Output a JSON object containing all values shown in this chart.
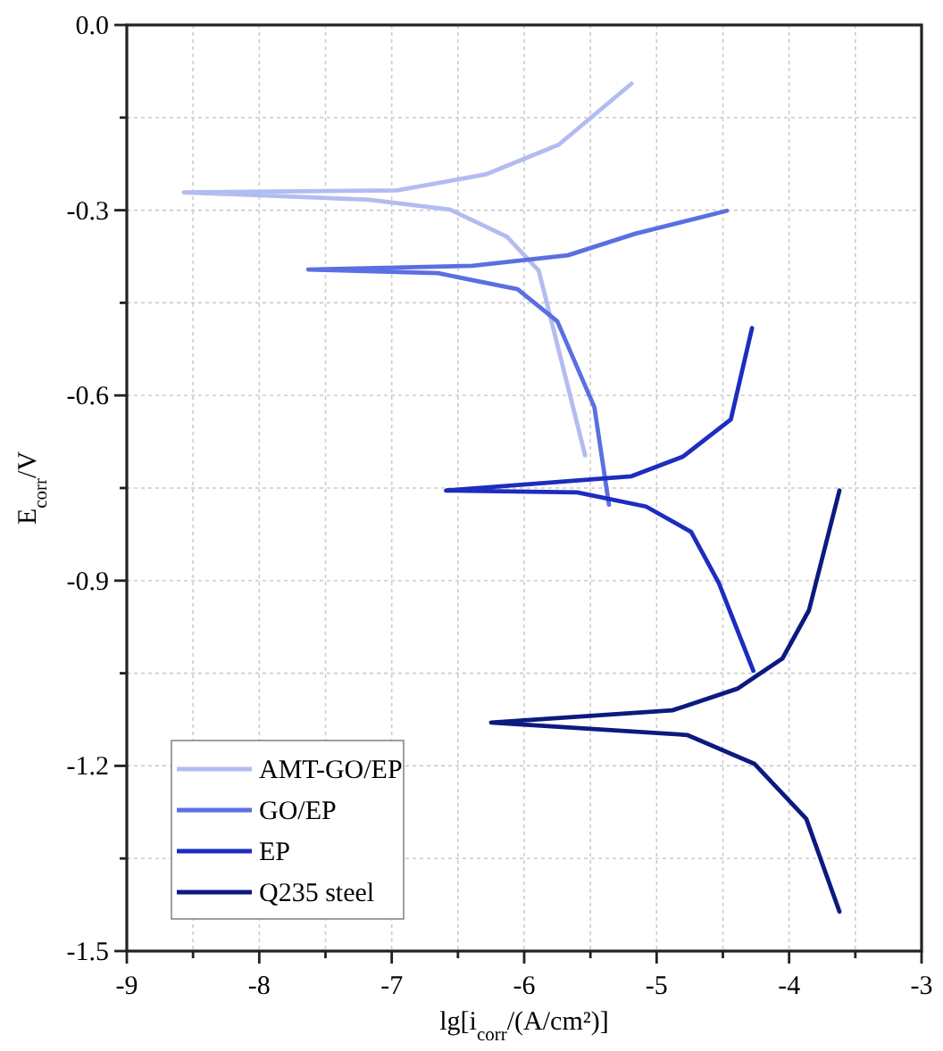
{
  "chart_data": {
    "type": "line",
    "xlabel": "lg[i$_{corr}$/(A/cm²)]",
    "ylabel": "E$_{corr}$/V",
    "xlim": [
      -9,
      -3
    ],
    "ylim": [
      -1.5,
      0
    ],
    "xticks": [
      -9,
      {
        "value": -8.5,
        "label": null
      },
      -8,
      {
        "value": -7.5,
        "label": null
      },
      -7,
      {
        "value": -6.5,
        "label": null
      },
      -6,
      {
        "value": -5.5,
        "label": null
      },
      -5,
      {
        "value": -4.5,
        "label": null
      },
      -4,
      {
        "value": -3.5,
        "label": null
      },
      -3
    ],
    "yticks": [
      {
        "value": 0,
        "label": "0.0"
      },
      {
        "value": -0.15,
        "label": null
      },
      -0.3,
      {
        "value": -0.45,
        "label": null
      },
      -0.6,
      {
        "value": -0.75,
        "label": null
      },
      -0.9,
      {
        "value": -1.05,
        "label": null
      },
      -1.2,
      {
        "value": -1.35,
        "label": null
      },
      -1.5
    ],
    "grid": true,
    "legend": "bottom left",
    "line_style": "solid",
    "marker": "none",
    "series": [
      {
        "name": "AMT-GO/EP",
        "color": "#b3bcf0",
        "x": [
          -5.19,
          -5.74,
          -6.29,
          -6.96,
          -8.57,
          -7.17,
          -6.56,
          -6.13,
          -5.89,
          -5.54
        ],
        "values": [
          -0.095,
          -0.194,
          -0.242,
          -0.268,
          -0.271,
          -0.283,
          -0.299,
          -0.343,
          -0.398,
          -0.697
        ]
      },
      {
        "name": "GO/EP",
        "color": "#5b6fe2",
        "x": [
          -4.47,
          -5.16,
          -5.67,
          -6.39,
          -7.63,
          -6.65,
          -6.05,
          -5.75,
          -5.47,
          -5.36
        ],
        "values": [
          -0.301,
          -0.338,
          -0.373,
          -0.39,
          -0.396,
          -0.402,
          -0.428,
          -0.48,
          -0.619,
          -0.777
        ]
      },
      {
        "name": "EP",
        "color": "#1c2dbf",
        "x": [
          -4.28,
          -4.44,
          -4.8,
          -5.19,
          -6.59,
          -5.6,
          -5.08,
          -4.74,
          -4.53,
          -4.27
        ],
        "values": [
          -0.491,
          -0.639,
          -0.699,
          -0.731,
          -0.754,
          -0.757,
          -0.78,
          -0.821,
          -0.904,
          -1.046
        ]
      },
      {
        "name": "Q235 steel",
        "color": "#0c1a80",
        "x": [
          -3.62,
          -3.85,
          -4.05,
          -4.39,
          -4.88,
          -6.25,
          -4.77,
          -4.26,
          -3.87,
          -3.62
        ],
        "values": [
          -0.754,
          -0.948,
          -1.026,
          -1.075,
          -1.11,
          -1.13,
          -1.15,
          -1.197,
          -1.286,
          -1.436
        ]
      }
    ]
  }
}
